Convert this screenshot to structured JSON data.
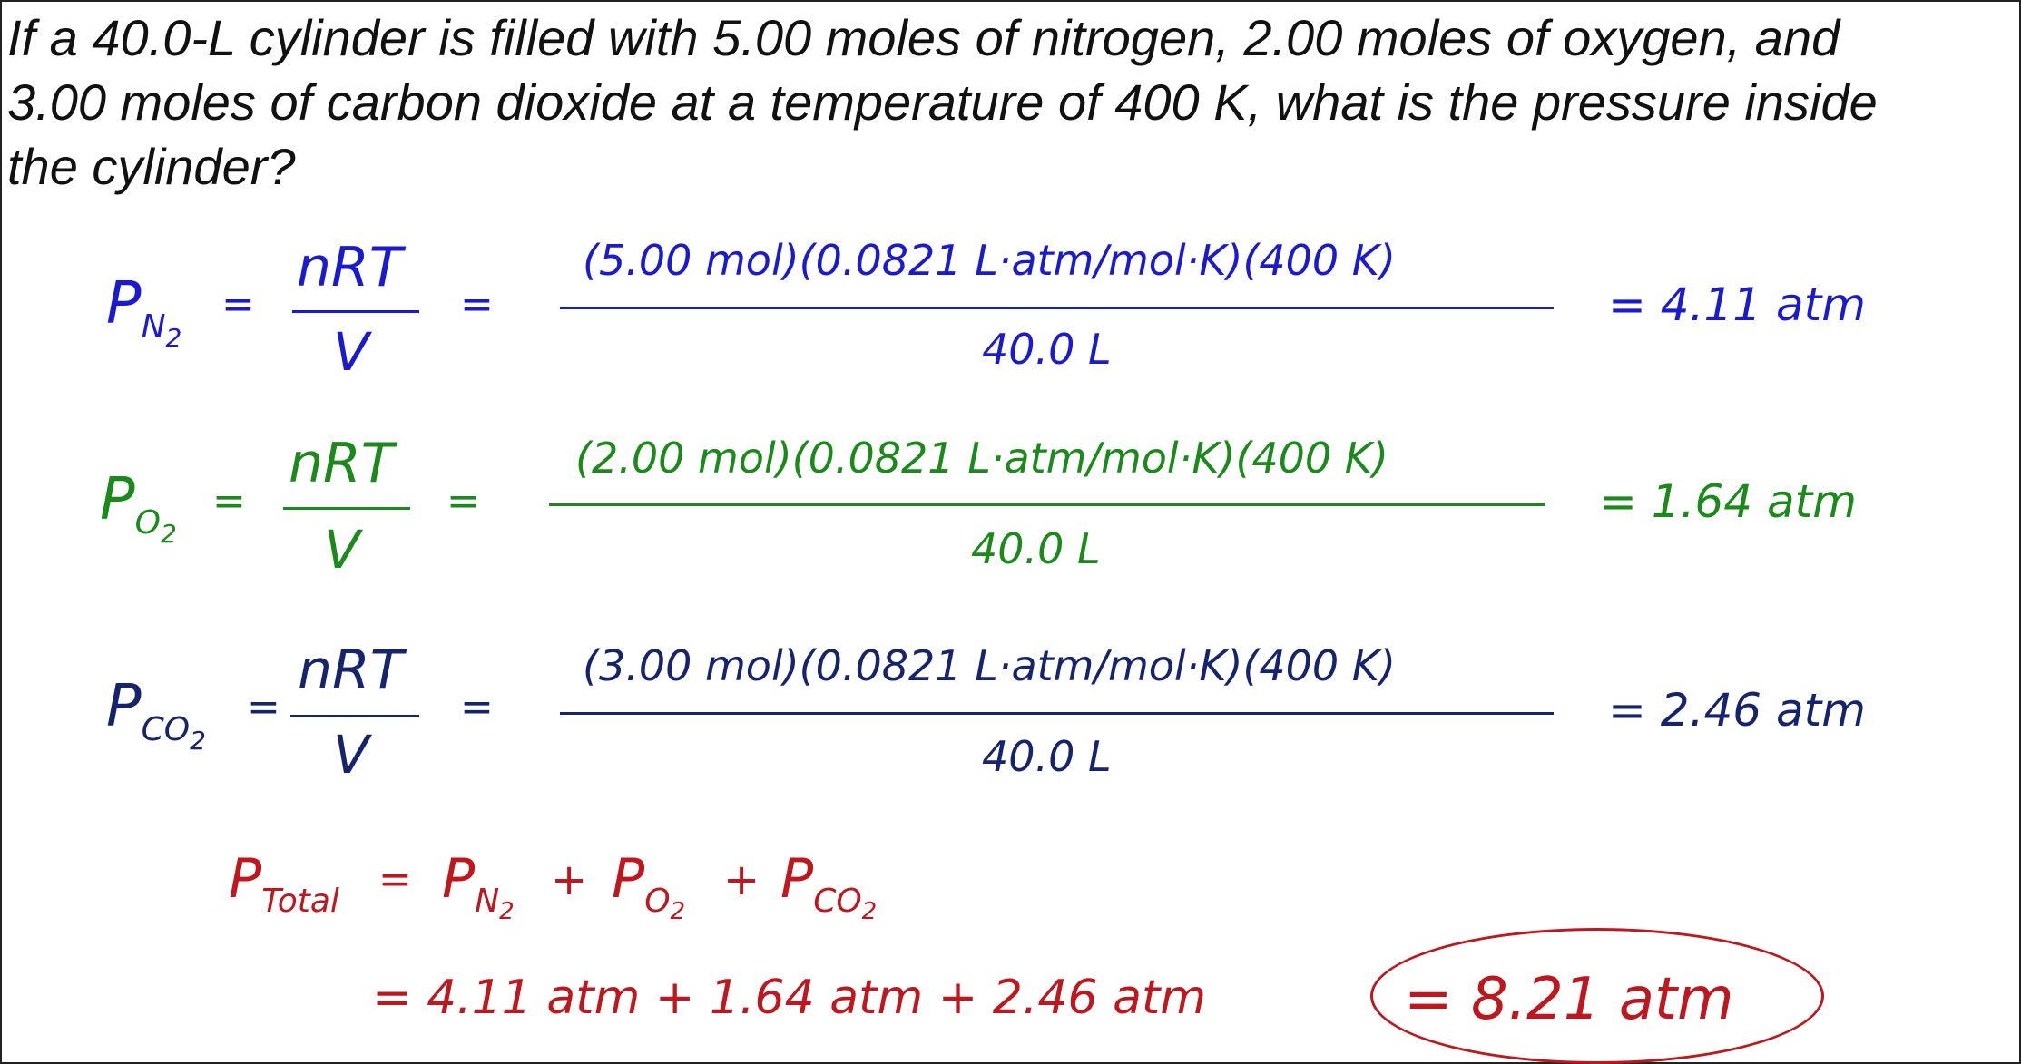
{
  "problem": {
    "line1": "If a 40.0-L cylinder is filled with 5.00 moles of nitrogen, 2.00 moles of oxygen, and",
    "line2": "3.00 moles of carbon dioxide at a temperature of 400 K, what is the pressure inside",
    "line3": "the cylinder?"
  },
  "equations": [
    {
      "p": "P",
      "sub": "N",
      "subsub": "2",
      "eq1": "=",
      "numer": "nRT",
      "denom": "V",
      "eq2": "=",
      "sub_numer": "(5.00  mol)(0.0821  L·atm/mol·K)(400  K)",
      "sub_denom": "40.0  L",
      "result": "= 4.11  atm",
      "color": "#1a1ad0"
    },
    {
      "p": "P",
      "sub": "O",
      "subsub": "2",
      "eq1": "=",
      "numer": "nRT",
      "denom": "V",
      "eq2": "=",
      "sub_numer": "(2.00  mol)(0.0821  L·atm/mol·K)(400  K)",
      "sub_denom": "40.0  L",
      "result": "= 1.64  atm",
      "color": "#1a8a1a"
    },
    {
      "p": "P",
      "sub": "CO",
      "subsub": "2",
      "eq1": "=",
      "numer": "nRT",
      "denom": "V",
      "eq2": "=",
      "sub_numer": "(3.00  mol)(0.0821  L·atm/mol·K)(400  K)",
      "sub_denom": "40.0  L",
      "result": "= 2.46  atm",
      "color": "#16246e"
    }
  ],
  "total": {
    "p": "P",
    "sub": "Total",
    "eq": "=",
    "t1": "P",
    "t1_sub": "N",
    "t1_subsub": "2",
    "plus1": "+",
    "t2": "P",
    "t2_sub": "O",
    "t2_subsub": "2",
    "plus2": "+",
    "t3": "P",
    "t3_sub": "CO",
    "t3_subsub": "2",
    "sum_line": "= 4.11  atm  +  1.64  atm  +  2.46  atm",
    "answer": "= 8.21  atm",
    "color": "#c0161d"
  }
}
